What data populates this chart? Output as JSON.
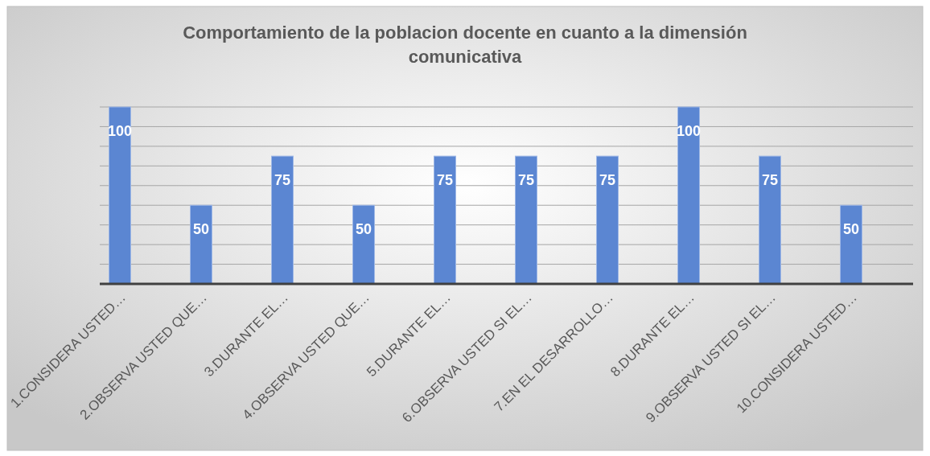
{
  "chart_data": {
    "type": "bar",
    "title": "Comportamiento de la poblacion docente en cuanto a la dimensión comunicativa",
    "categories": [
      "1.CONSIDERA USTED…",
      "2.OBSERVA USTED QUE…",
      "3.DURANTE EL…",
      "4.OBSERVA USTED QUE…",
      "5.DURANTE EL…",
      "6.OBSERVA USTED SI EL…",
      "7.EN EL DESARROLLO…",
      "8.DURANTE EL…",
      "9.OBSERVA USTED SI EL…",
      "10.CONSIDERA USTED…"
    ],
    "values": [
      100,
      50,
      75,
      50,
      75,
      75,
      75,
      100,
      75,
      50
    ],
    "color": "#5b86d2",
    "ylim": [
      10,
      100
    ],
    "yticks": [
      {
        "value": 10,
        "label": null
      },
      {
        "value": 20,
        "label": null
      },
      {
        "value": 30,
        "label": null
      },
      {
        "value": 40,
        "label": null
      },
      {
        "value": 50,
        "label": null
      },
      {
        "value": 60,
        "label": null
      },
      {
        "value": 70,
        "label": null
      },
      {
        "value": 80,
        "label": null
      },
      {
        "value": 90,
        "label": null
      },
      {
        "value": 100,
        "label": null
      }
    ],
    "grid": "y",
    "tick_labels": "x",
    "data_labels": true
  }
}
